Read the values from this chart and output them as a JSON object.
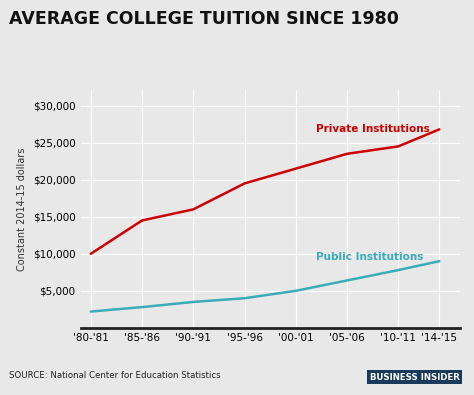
{
  "title": "AVERAGE COLLEGE TUITION SINCE 1980",
  "ylabel": "Constant 2014-15 dollars",
  "source": "SOURCE: National Center for Education Statistics",
  "watermark": "BUSINESS INSIDER",
  "x_labels": [
    "'80-'81",
    "'85-'86",
    "'90-'91",
    "'95-'96",
    "'00-'01",
    "'05-'06",
    "'10-'11",
    "'14-'15"
  ],
  "x_values": [
    0,
    5,
    10,
    15,
    20,
    25,
    30,
    34
  ],
  "private": [
    10000,
    14500,
    16000,
    19500,
    21500,
    23500,
    24500,
    26800
  ],
  "public": [
    2200,
    2800,
    3500,
    4000,
    5000,
    6400,
    7800,
    9000
  ],
  "private_color": "#cc0000",
  "public_color": "#3aacb8",
  "private_label": "Private Institutions",
  "public_label": "Public Institutions",
  "bg_color": "#e8e8e8",
  "plot_bg_color": "#e8e8e8",
  "footer_bg_color": "#cccccc",
  "ylim": [
    0,
    32000
  ],
  "yticks": [
    5000,
    10000,
    15000,
    20000,
    25000,
    30000
  ]
}
